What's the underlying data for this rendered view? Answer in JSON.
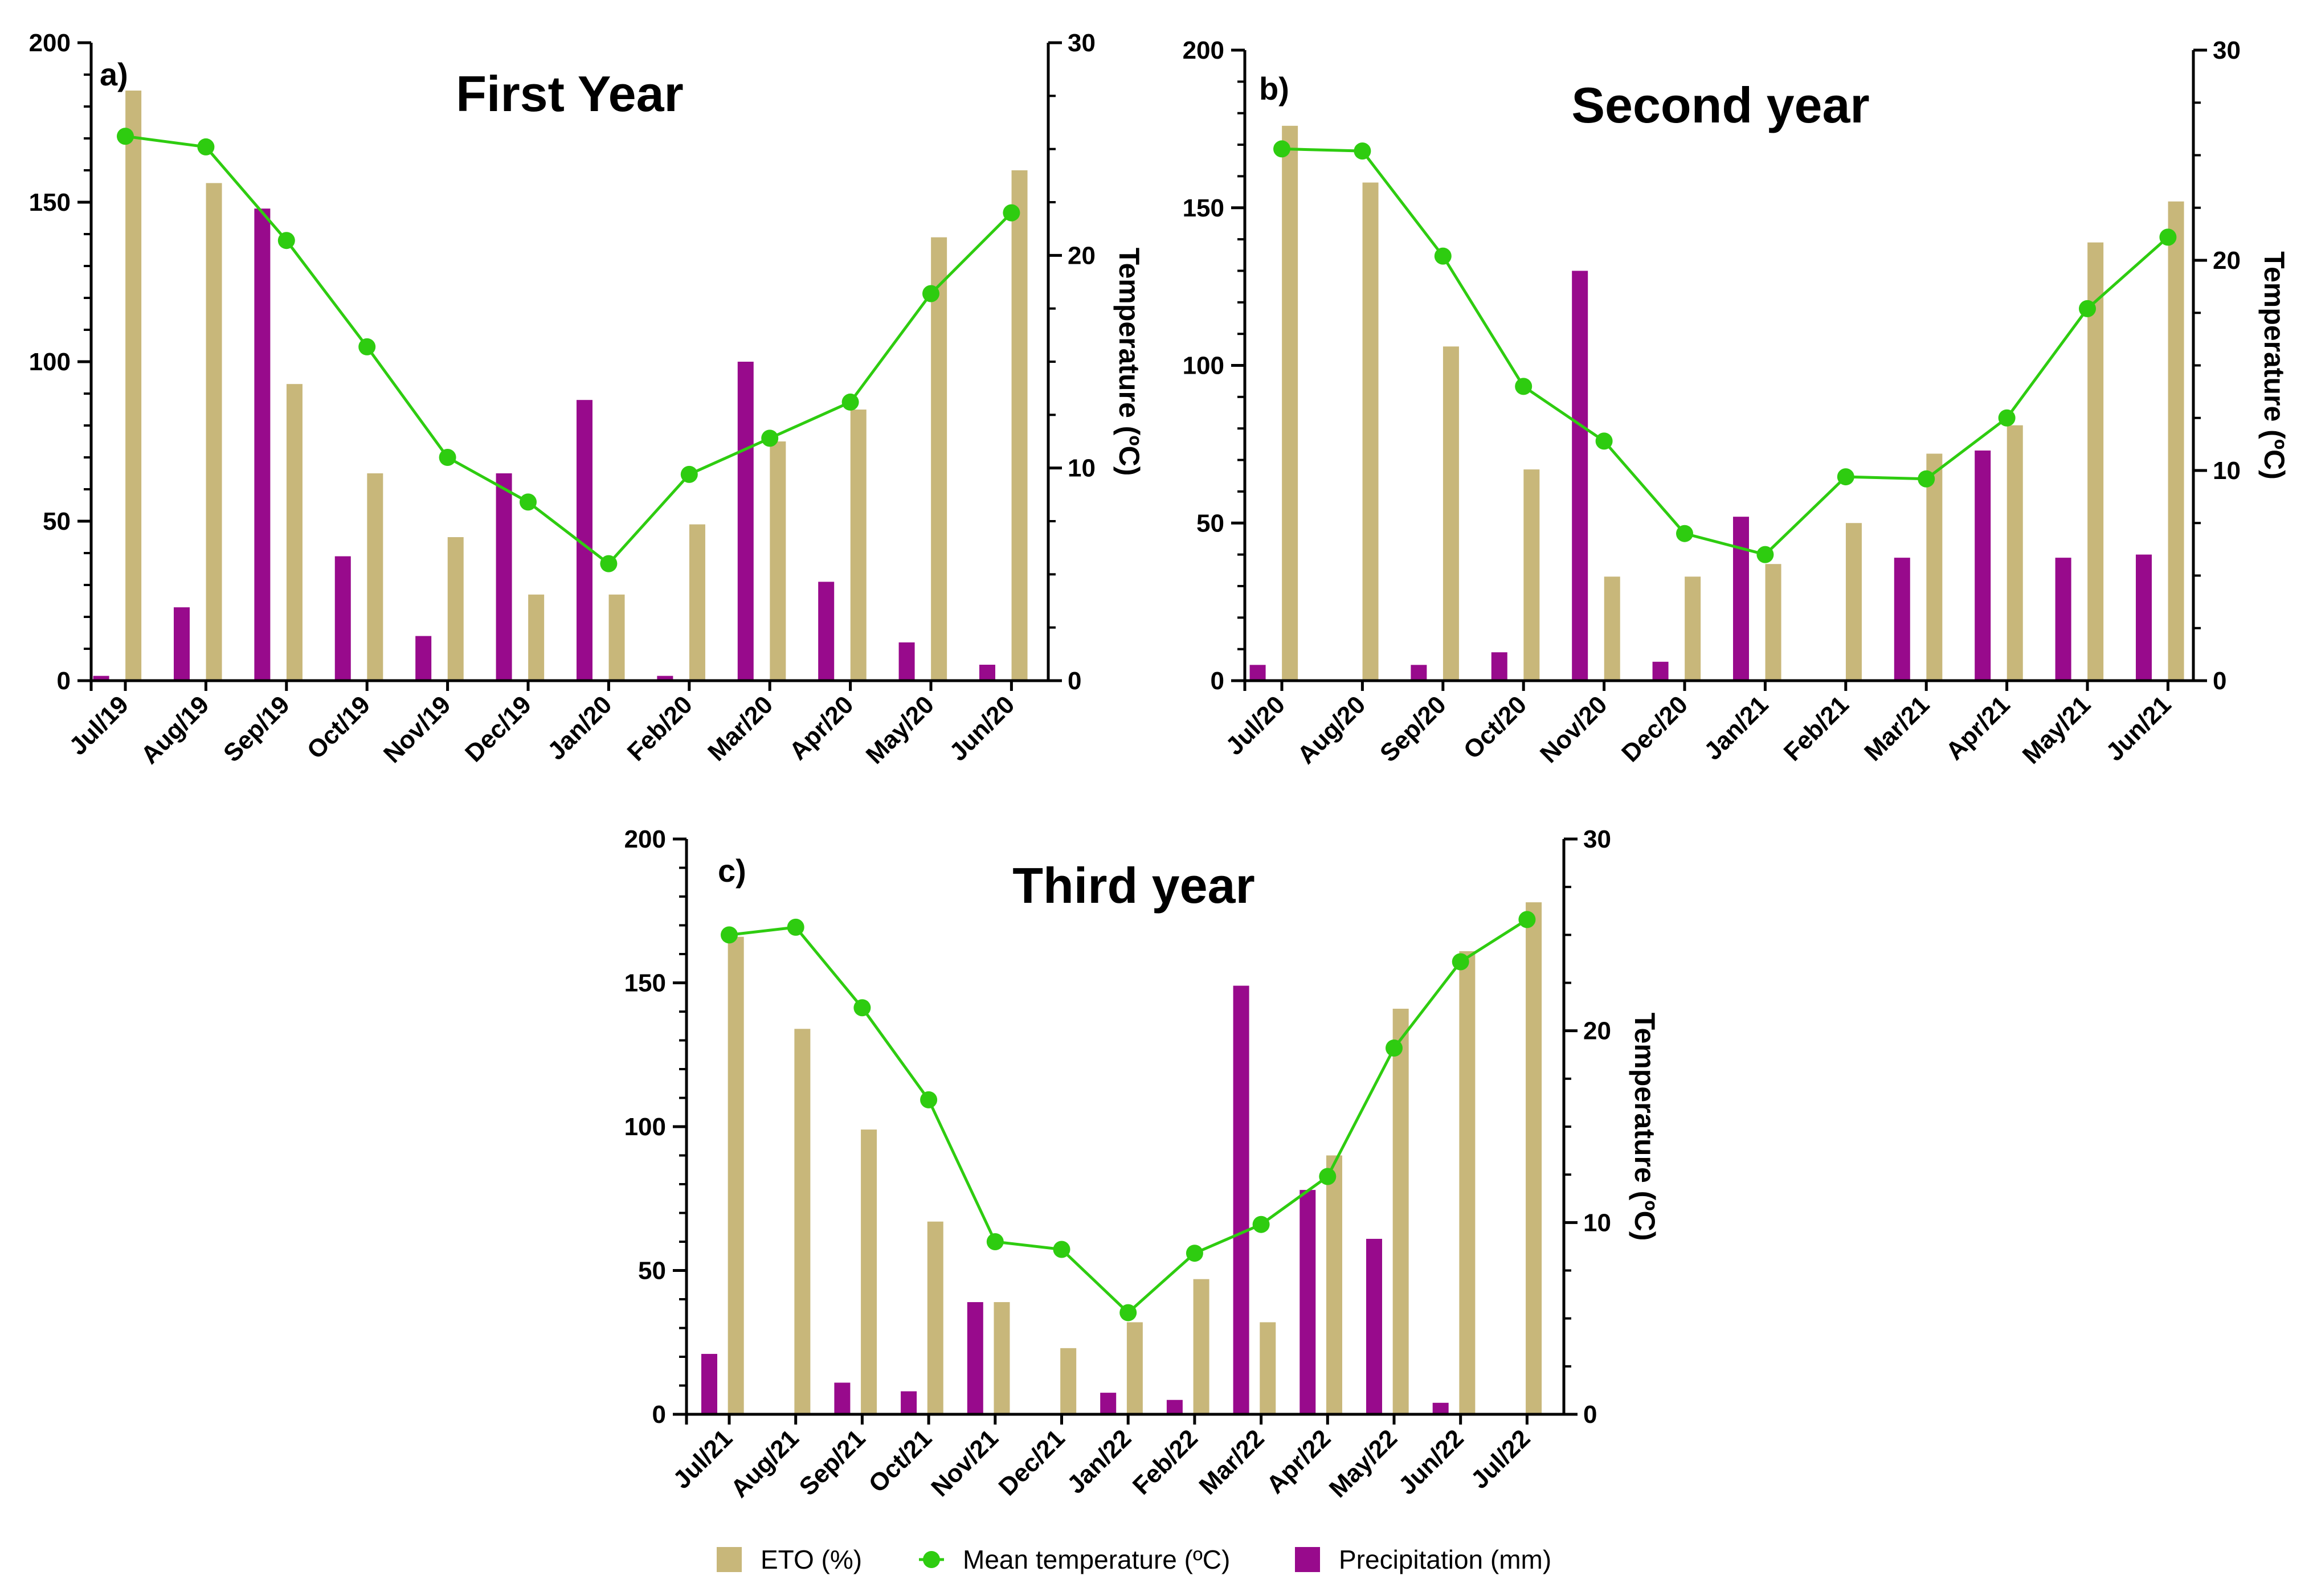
{
  "colors": {
    "eto": "#c8b77a",
    "temperature": "#2ecc10",
    "precipitation": "#980a8c",
    "axis": "#000000"
  },
  "legend": {
    "items": [
      {
        "label": "ETO (%)",
        "marker": "bar-square",
        "color": "#c8b77a"
      },
      {
        "label": "Mean temperature (ºC)",
        "marker": "line-circle",
        "color": "#2ecc10"
      },
      {
        "label": "Precipitation (mm)",
        "marker": "bar-square",
        "color": "#980a8c"
      }
    ]
  },
  "chart_data": [
    {
      "type": "bar+line",
      "panel": "a)",
      "title": "First Year",
      "categories": [
        "Jul/19",
        "Aug/19",
        "Sep/19",
        "Oct/19",
        "Nov/19",
        "Dec/19",
        "Jan/20",
        "Feb/20",
        "Mar/20",
        "Apr/20",
        "May/20",
        "Jun/20"
      ],
      "series": [
        {
          "name": "Precipitation (mm)",
          "kind": "bar",
          "axis": "left",
          "values": [
            1.5,
            23,
            148,
            39,
            14,
            65,
            88,
            1.5,
            100,
            31,
            12,
            5
          ]
        },
        {
          "name": "ETO (%)",
          "kind": "bar",
          "axis": "left",
          "values": [
            185,
            156,
            93,
            65,
            45,
            27,
            27,
            49,
            75,
            85,
            139,
            160
          ]
        },
        {
          "name": "Mean temperature (ºC)",
          "kind": "line",
          "axis": "right",
          "values": [
            25.6,
            25.1,
            20.7,
            15.7,
            10.5,
            8.4,
            5.5,
            9.7,
            11.4,
            13.1,
            18.2,
            22.0
          ]
        }
      ],
      "y_left": {
        "label": "",
        "ylim": [
          0,
          200
        ],
        "ticks": [
          "0",
          "50",
          "100",
          "150",
          "200"
        ]
      },
      "y_right": {
        "label": "Temperature (ºC)",
        "ylim": [
          0,
          30
        ],
        "ticks": [
          "0",
          "10",
          "20",
          "30"
        ]
      },
      "xlabel": ""
    },
    {
      "type": "bar+line",
      "panel": "b)",
      "title": "Second year",
      "categories": [
        "Jul/20",
        "Aug/20",
        "Sep/20",
        "Oct/20",
        "Nov/20",
        "Dec/20",
        "Jan/21",
        "Feb/21",
        "Mar/21",
        "Apr/21",
        "May/21",
        "Jun/21"
      ],
      "series": [
        {
          "name": "Precipitation (mm)",
          "kind": "bar",
          "axis": "left",
          "values": [
            5,
            0,
            5,
            9,
            130,
            6,
            52,
            0,
            39,
            73,
            39,
            40
          ]
        },
        {
          "name": "ETO (%)",
          "kind": "bar",
          "axis": "left",
          "values": [
            176,
            158,
            106,
            67,
            33,
            33,
            37,
            50,
            72,
            81,
            139,
            152
          ]
        },
        {
          "name": "Mean temperature (ºC)",
          "kind": "line",
          "axis": "right",
          "values": [
            25.3,
            25.2,
            20.2,
            14.0,
            11.4,
            7.0,
            6.0,
            9.7,
            9.6,
            12.5,
            17.7,
            21.1
          ]
        }
      ],
      "y_left": {
        "label": "",
        "ylim": [
          0,
          200
        ],
        "ticks": [
          "0",
          "50",
          "100",
          "150",
          "200"
        ]
      },
      "y_right": {
        "label": "Temperature (ºC)",
        "ylim": [
          0,
          30
        ],
        "ticks": [
          "0",
          "10",
          "20",
          "30"
        ]
      },
      "xlabel": ""
    },
    {
      "type": "bar+line",
      "panel": "c)",
      "title": "Third year",
      "categories": [
        "Jul/21",
        "Aug/21",
        "Sep/21",
        "Oct/21",
        "Nov/21",
        "Dec/21",
        "Jan/22",
        "Feb/22",
        "Mar/22",
        "Apr/22",
        "May/22",
        "Jun/22",
        "Jul/22"
      ],
      "series": [
        {
          "name": "Precipitation (mm)",
          "kind": "bar",
          "axis": "left",
          "values": [
            21,
            0,
            11,
            8,
            39,
            0,
            7.5,
            5,
            149,
            78,
            61,
            4,
            0
          ]
        },
        {
          "name": "ETO (%)",
          "kind": "bar",
          "axis": "left",
          "values": [
            166,
            134,
            99,
            67,
            39,
            23,
            32,
            47,
            32,
            90,
            141,
            161,
            178
          ]
        },
        {
          "name": "Mean temperature (ºC)",
          "kind": "line",
          "axis": "right",
          "values": [
            25.0,
            25.4,
            21.2,
            16.4,
            9.0,
            8.6,
            5.3,
            8.4,
            9.9,
            12.4,
            19.1,
            23.6,
            25.8
          ]
        }
      ],
      "y_left": {
        "label": "",
        "ylim": [
          0,
          200
        ],
        "ticks": [
          "0",
          "50",
          "100",
          "150",
          "200"
        ]
      },
      "y_right": {
        "label": "Temperature (ºC)",
        "ylim": [
          0,
          30
        ],
        "ticks": [
          "0",
          "10",
          "20",
          "30"
        ]
      },
      "xlabel": ""
    }
  ]
}
